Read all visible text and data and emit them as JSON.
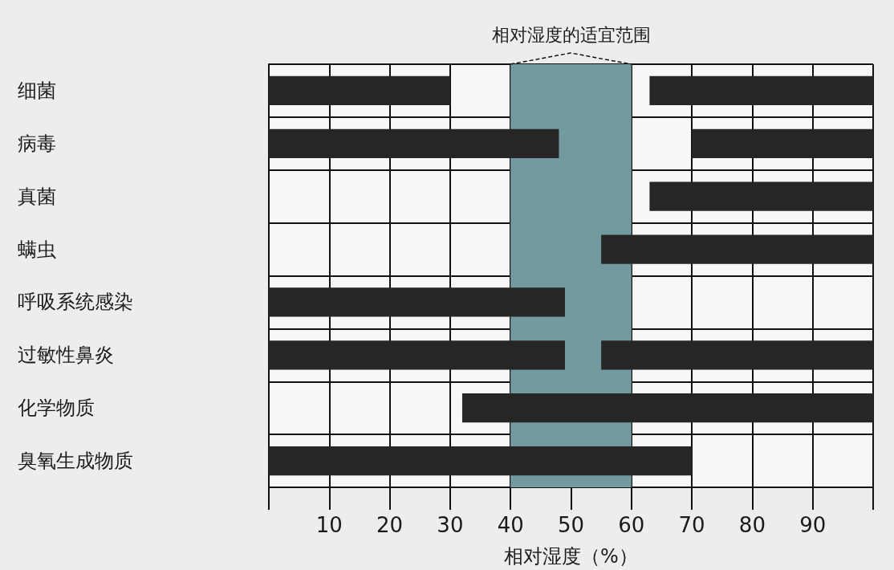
{
  "chart_data": {
    "type": "bar",
    "orientation": "horizontal",
    "xlabel": "相对湿度（%）",
    "categories": [
      "细菌",
      "病毒",
      "真菌",
      "螨虫",
      "呼吸系统感染",
      "过敏性鼻炎",
      "化学物质",
      "臭氧生成物质"
    ],
    "series": [
      {
        "color": "#262626",
        "base": [
          0,
          0,
          null,
          null,
          0,
          0,
          null,
          0
        ],
        "values": [
          30,
          48,
          null,
          null,
          49,
          49,
          null,
          70
        ]
      },
      {
        "color": "#262626",
        "base": [
          63,
          70,
          63,
          55,
          null,
          55,
          32,
          null
        ],
        "values": [
          37,
          30,
          37,
          45,
          null,
          45,
          68,
          null
        ]
      }
    ],
    "xlim": [
      0,
      100
    ],
    "xticks": [
      {
        "value": 0,
        "label": null
      },
      10,
      20,
      30,
      40,
      50,
      60,
      70,
      80,
      90,
      {
        "value": 100,
        "label": null
      }
    ],
    "bands": [
      {
        "axis": "x",
        "from": 40,
        "to": 60,
        "label": "相对湿度的适宜范围",
        "color": "#739b9f"
      }
    ],
    "grid": true
  }
}
